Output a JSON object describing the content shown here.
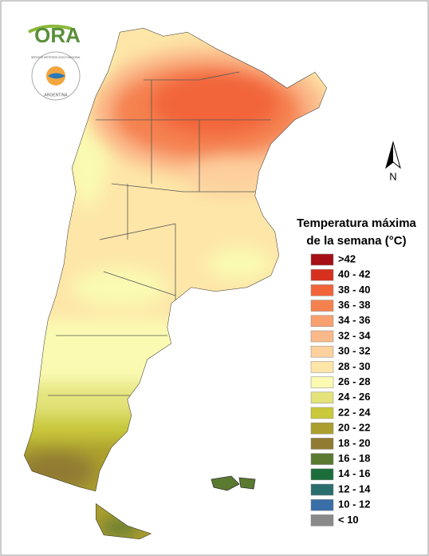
{
  "header": {
    "logo": "ORA",
    "agency": "SERVICIO METEOROLÓGICO NACIONAL",
    "country": "ARGENTINA"
  },
  "compass": "N",
  "legend": {
    "title": [
      "Temperatura máxima",
      "de la semana (°C)"
    ],
    "items": [
      {
        "label": ">42",
        "color": "#a50f15"
      },
      {
        "label": "40 - 42",
        "color": "#d7301f"
      },
      {
        "label": "38 - 40",
        "color": "#f2653a"
      },
      {
        "label": "36 - 38",
        "color": "#f5814f"
      },
      {
        "label": "34 - 36",
        "color": "#f9a070"
      },
      {
        "label": "32 - 34",
        "color": "#fbb98a"
      },
      {
        "label": "30 - 32",
        "color": "#fdd09e"
      },
      {
        "label": "28 - 30",
        "color": "#fde6a8"
      },
      {
        "label": "26 - 28",
        "color": "#fafab2"
      },
      {
        "label": "24 - 26",
        "color": "#e3e37a"
      },
      {
        "label": "22 - 24",
        "color": "#c9c93a"
      },
      {
        "label": "20 - 22",
        "color": "#ab9f2f"
      },
      {
        "label": "18 - 20",
        "color": "#917a32"
      },
      {
        "label": "16 - 18",
        "color": "#5a7a30"
      },
      {
        "label": "14 - 16",
        "color": "#1b6e3a"
      },
      {
        "label": "12 - 14",
        "color": "#2a6e6e"
      },
      {
        "label": "10 - 12",
        "color": "#3a6ea8"
      },
      {
        "label": "< 10",
        "color": "#8a8a8a"
      }
    ]
  }
}
